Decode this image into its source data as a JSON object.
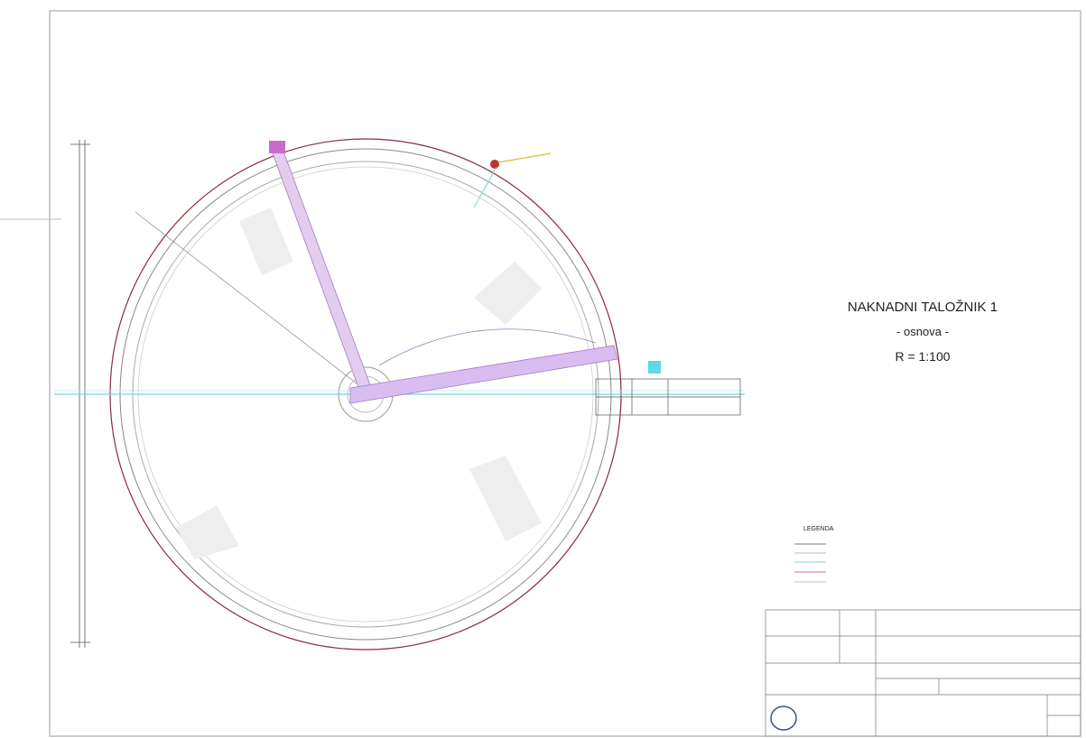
{
  "drawing": {
    "title": "NAKNADNI TALOŽNIK 1",
    "subtitle": "- osnova -",
    "scale": "R = 1:100"
  },
  "legend": {
    "title": "LEGENDA"
  }
}
